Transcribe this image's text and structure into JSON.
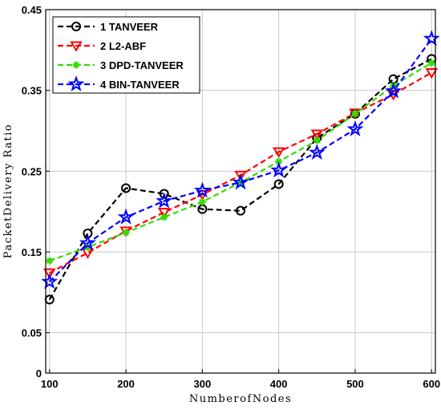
{
  "chart_data": {
    "type": "line",
    "title": "",
    "xlabel": "NumberofNodes",
    "ylabel": "PacketDelivery Ratio",
    "xlim": [
      95,
      605
    ],
    "ylim": [
      0,
      0.45
    ],
    "grid": true,
    "legend_position": "top-left",
    "x_ticks": [
      100,
      200,
      300,
      400,
      500,
      600
    ],
    "x_tick_labels": [
      "100",
      "200",
      "300",
      "400",
      "500",
      "600"
    ],
    "y_ticks": [
      0,
      0.05,
      0.15,
      0.25,
      0.35,
      0.45
    ],
    "y_tick_labels": [
      "0",
      "0.05",
      "0.15",
      "0.25",
      "0.35",
      "0.45"
    ],
    "x": [
      100,
      150,
      200,
      250,
      300,
      350,
      400,
      450,
      500,
      550,
      600
    ],
    "series": [
      {
        "name": "1 TANVEER",
        "color": "#000000",
        "marker": "circle",
        "values": [
          0.091,
          0.173,
          0.229,
          0.222,
          0.203,
          0.201,
          0.234,
          0.291,
          0.321,
          0.364,
          0.389
        ]
      },
      {
        "name": "2 L2-ABF",
        "color": "#ff0000",
        "marker": "triangle-down",
        "values": [
          0.124,
          0.149,
          0.176,
          0.199,
          0.221,
          0.245,
          0.274,
          0.296,
          0.322,
          0.345,
          0.372
        ]
      },
      {
        "name": "3 DPD-TANVEER",
        "color": "#33dd00",
        "marker": "asterisk",
        "values": [
          0.139,
          0.156,
          0.174,
          0.193,
          0.212,
          0.236,
          0.262,
          0.288,
          0.321,
          0.356,
          0.384
        ]
      },
      {
        "name": "4 BIN-TANVEER",
        "color": "#0000ff",
        "marker": "star",
        "values": [
          0.113,
          0.161,
          0.193,
          0.213,
          0.226,
          0.236,
          0.251,
          0.273,
          0.302,
          0.349,
          0.414
        ]
      }
    ]
  }
}
